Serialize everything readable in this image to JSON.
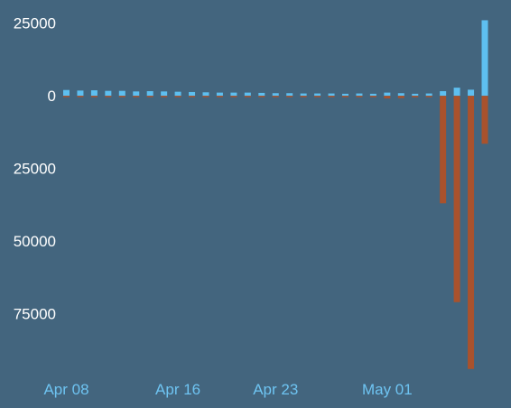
{
  "colors": {
    "background": "#43657e",
    "positive": "#5ebff0",
    "negative": "#a9522d",
    "y_tick_text": "#ffffff",
    "x_tick_text": "#6ec4f2"
  },
  "chart_data": {
    "type": "bar",
    "grid": false,
    "legend": "none",
    "ylim": [
      -95000,
      28000
    ],
    "yticks": [
      {
        "value": 25000,
        "label": "25000"
      },
      {
        "value": 0,
        "label": "0"
      },
      {
        "value": -25000,
        "label": "25000"
      },
      {
        "value": -50000,
        "label": "50000"
      },
      {
        "value": -75000,
        "label": "75000"
      }
    ],
    "xticks": [
      {
        "date": "2020-04-08",
        "label": "Apr 08"
      },
      {
        "date": "2020-04-16",
        "label": "Apr 16"
      },
      {
        "date": "2020-04-23",
        "label": "Apr 23"
      },
      {
        "date": "2020-05-01",
        "label": "May 01"
      }
    ],
    "x": [
      "2020-04-08",
      "2020-04-09",
      "2020-04-10",
      "2020-04-11",
      "2020-04-12",
      "2020-04-13",
      "2020-04-14",
      "2020-04-15",
      "2020-04-16",
      "2020-04-17",
      "2020-04-18",
      "2020-04-19",
      "2020-04-20",
      "2020-04-21",
      "2020-04-22",
      "2020-04-23",
      "2020-04-24",
      "2020-04-25",
      "2020-04-26",
      "2020-04-27",
      "2020-04-28",
      "2020-04-29",
      "2020-04-30",
      "2020-05-01",
      "2020-05-02",
      "2020-05-03",
      "2020-05-04",
      "2020-05-05",
      "2020-05-06",
      "2020-05-07",
      "2020-05-08"
    ],
    "series": [
      {
        "values": [
          2000,
          1800,
          1900,
          1700,
          1700,
          1500,
          1600,
          1500,
          1400,
          1300,
          1200,
          1100,
          1100,
          1100,
          1000,
          900,
          900,
          800,
          800,
          800,
          700,
          800,
          700,
          1100,
          900,
          700,
          800,
          1600,
          2800,
          2100,
          26000
        ],
        "color": "#5ebff0"
      },
      {
        "values": [
          -200,
          -200,
          -200,
          -200,
          -200,
          -200,
          -200,
          -200,
          -200,
          -200,
          -200,
          -200,
          -200,
          -200,
          -200,
          -200,
          -200,
          -200,
          -200,
          -200,
          -200,
          -200,
          -200,
          -900,
          -800,
          -500,
          -400,
          -37000,
          -71000,
          -94000,
          -16500
        ],
        "color": "#a9522d"
      }
    ]
  }
}
